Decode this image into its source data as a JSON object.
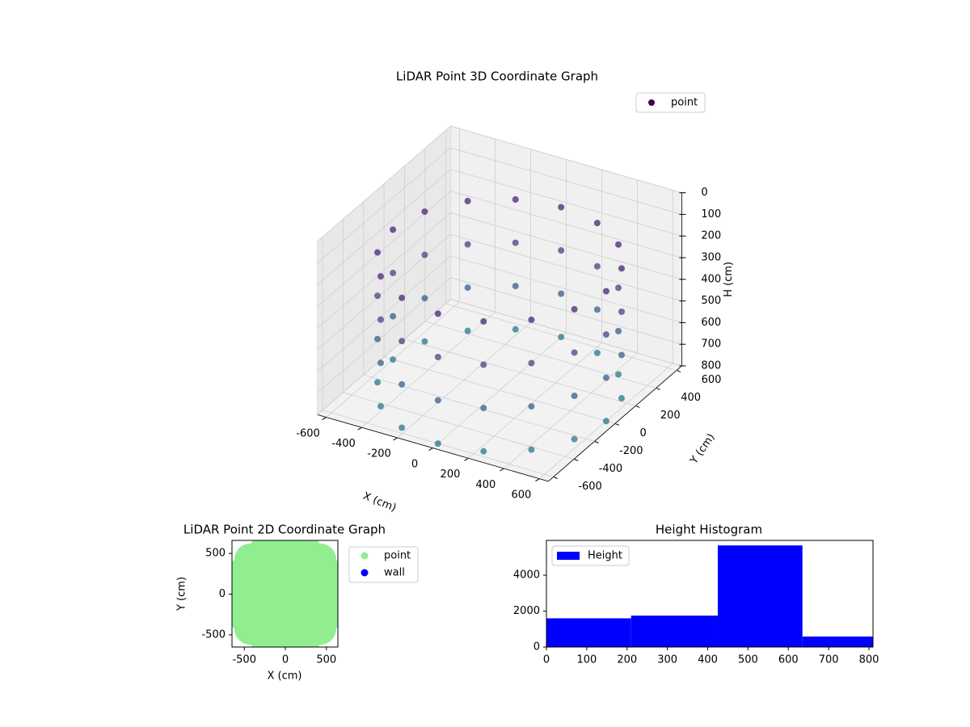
{
  "chart_data": [
    {
      "type": "scatter3d",
      "title": "LiDAR Point 3D Coordinate Graph",
      "xlabel": "X (cm)",
      "ylabel": "Y (cm)",
      "zlabel": "H (cm)",
      "xlim": [
        -650,
        650
      ],
      "ylim": [
        -650,
        650
      ],
      "zlim": [
        0,
        800
      ],
      "z_inverted": true,
      "xticks": [
        -600,
        -400,
        -200,
        0,
        200,
        400,
        600
      ],
      "yticks": [
        -600,
        -400,
        -200,
        0,
        200,
        400,
        600
      ],
      "zticks": [
        0,
        100,
        200,
        300,
        400,
        500,
        600,
        700,
        800
      ],
      "grid": true,
      "legend": "upper right",
      "colormap": "viridis",
      "series": [
        {
          "name": "point",
          "color": "#440154",
          "x": [
            600,
            554,
            424,
            230,
            0,
            -230,
            -424,
            -554,
            -600,
            -554,
            -424,
            -230,
            0,
            230,
            424,
            554,
            600,
            554,
            424,
            230,
            0,
            -230,
            -424,
            -554,
            -600,
            -554,
            -424,
            -230,
            0,
            230,
            424,
            554,
            600,
            554,
            424,
            230,
            0,
            -230,
            -424,
            -554,
            -600,
            -554,
            -424,
            -230,
            0,
            230,
            424,
            554,
            600,
            554,
            424,
            230,
            0,
            -230,
            -424,
            -554,
            -600,
            -554,
            -424,
            -230,
            0,
            230,
            424,
            554
          ],
          "y": [
            0,
            230,
            424,
            554,
            600,
            554,
            424,
            230,
            0,
            -230,
            -424,
            -554,
            -600,
            -554,
            -424,
            -230,
            0,
            230,
            424,
            554,
            600,
            554,
            424,
            230,
            0,
            -230,
            -424,
            -554,
            -600,
            -554,
            -424,
            -230,
            0,
            230,
            424,
            554,
            600,
            554,
            424,
            230,
            0,
            -230,
            -424,
            -554,
            -600,
            -554,
            -424,
            -230,
            0,
            230,
            424,
            554,
            600,
            554,
            424,
            230,
            0,
            -230,
            -424,
            -554,
            -600,
            -554,
            -424,
            -230
          ],
          "z": [
            200,
            200,
            200,
            200,
            200,
            200,
            200,
            200,
            200,
            200,
            200,
            200,
            200,
            200,
            200,
            200,
            400,
            400,
            400,
            400,
            400,
            400,
            400,
            400,
            400,
            400,
            400,
            400,
            400,
            400,
            400,
            400,
            600,
            600,
            600,
            600,
            600,
            600,
            600,
            600,
            600,
            600,
            600,
            600,
            600,
            600,
            600,
            600,
            800,
            800,
            800,
            800,
            800,
            800,
            800,
            800,
            800,
            800,
            800,
            800,
            800,
            800,
            800,
            800
          ]
        }
      ]
    },
    {
      "type": "scatter",
      "title": "LiDAR Point 2D Coordinate Graph",
      "xlabel": "X (cm)",
      "ylabel": "Y (cm)",
      "xlim": [
        -650,
        640
      ],
      "ylim": [
        -650,
        660
      ],
      "xticks": [
        -500,
        0,
        500
      ],
      "yticks": [
        -500,
        0,
        500
      ],
      "legend": "outside right",
      "series": [
        {
          "name": "point",
          "color": "#90ee90",
          "x": [
            600,
            554,
            424,
            230,
            0,
            -230,
            -424,
            -554,
            -600,
            -554,
            -424,
            -230,
            0,
            230,
            424,
            554,
            300,
            212,
            0,
            -212,
            -300,
            -212,
            0,
            212,
            0
          ],
          "y": [
            0,
            230,
            424,
            554,
            600,
            554,
            424,
            230,
            0,
            -230,
            -424,
            -554,
            -600,
            -554,
            -424,
            -230,
            0,
            212,
            300,
            212,
            0,
            -212,
            -300,
            -212,
            0
          ]
        },
        {
          "name": "wall",
          "color": "#0000ff",
          "x": [],
          "y": []
        }
      ]
    },
    {
      "type": "histogram",
      "title": "Height Histogram",
      "bins": [
        0,
        210,
        425,
        635,
        810
      ],
      "xlim": [
        0,
        810
      ],
      "ylim": [
        0,
        5940
      ],
      "xticks": [
        0,
        100,
        200,
        300,
        400,
        500,
        600,
        700,
        800
      ],
      "yticks": [
        0,
        2000,
        4000
      ],
      "legend": "upper left",
      "series": [
        {
          "name": "Height",
          "color": "#0000ff",
          "values": [
            1600,
            1750,
            5660,
            585
          ]
        }
      ]
    }
  ]
}
